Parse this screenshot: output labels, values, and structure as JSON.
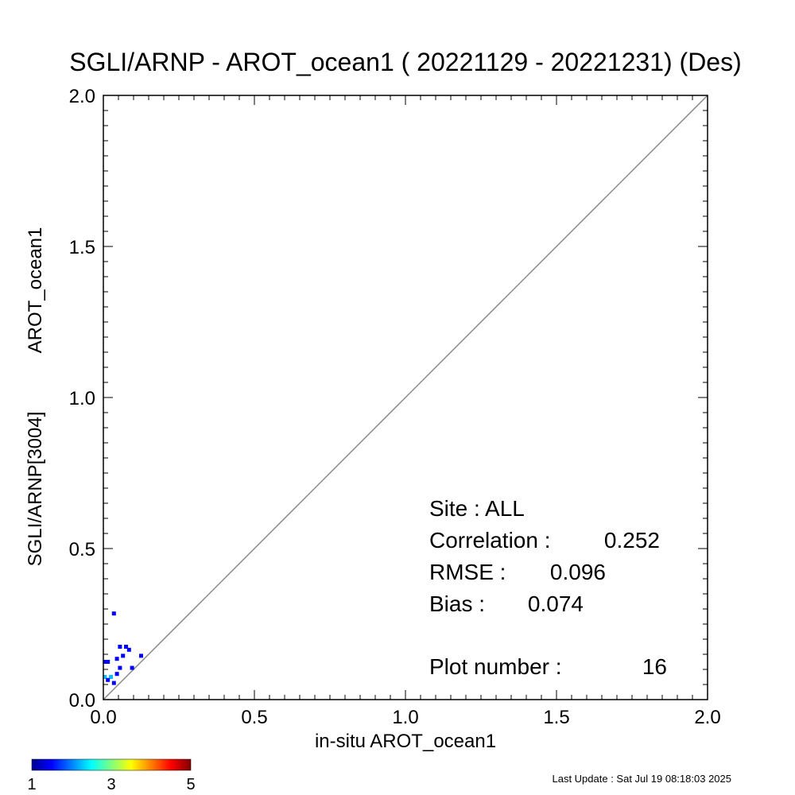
{
  "chart_data": {
    "type": "scatter",
    "title": "SGLI/ARNP - AROT_ocean1 ( 20221129 - 20221231) (Des)",
    "xlabel": "in-situ AROT_ocean1",
    "ylabel_main": "SGLI/ARNP[3004]",
    "ylabel_sub": "AROT_ocean1",
    "xlim": [
      0.0,
      2.0
    ],
    "ylim": [
      0.0,
      2.0
    ],
    "x_ticks": [
      "0.0",
      "0.5",
      "1.0",
      "1.5",
      "2.0"
    ],
    "y_ticks": [
      "0.0",
      "0.5",
      "1.0",
      "1.5",
      "2.0"
    ],
    "one_to_one_line": true,
    "points": [
      {
        "x": 0.035,
        "y": 0.285,
        "count": 1
      },
      {
        "x": 0.055,
        "y": 0.175,
        "count": 1
      },
      {
        "x": 0.075,
        "y": 0.175,
        "count": 1
      },
      {
        "x": 0.085,
        "y": 0.165,
        "count": 1
      },
      {
        "x": 0.065,
        "y": 0.145,
        "count": 1
      },
      {
        "x": 0.125,
        "y": 0.145,
        "count": 1
      },
      {
        "x": 0.045,
        "y": 0.135,
        "count": 1
      },
      {
        "x": 0.015,
        "y": 0.125,
        "count": 1
      },
      {
        "x": 0.055,
        "y": 0.105,
        "count": 1
      },
      {
        "x": 0.095,
        "y": 0.105,
        "count": 1
      },
      {
        "x": 0.045,
        "y": 0.085,
        "count": 1
      },
      {
        "x": 0.035,
        "y": 0.055,
        "count": 1
      },
      {
        "x": 0.005,
        "y": 0.075,
        "count": 2
      },
      {
        "x": 0.025,
        "y": 0.075,
        "count": 2
      },
      {
        "x": 0.005,
        "y": 0.125,
        "count": 1
      },
      {
        "x": 0.015,
        "y": 0.065,
        "count": 1
      }
    ],
    "stats": {
      "site_label": "Site : ALL",
      "correlation_label": "Correlation :",
      "correlation_value": "0.252",
      "rmse_label": "RMSE :",
      "rmse_value": "0.096",
      "bias_label": "Bias :",
      "bias_value": "0.074",
      "plot_number_label": "Plot number :",
      "plot_number_value": "16"
    },
    "colorbar": {
      "min": 1,
      "max": 5,
      "tick_labels": [
        "1",
        "3",
        "5"
      ],
      "colormap": "jet"
    }
  },
  "footer": {
    "last_update": "Last Update : Sat Jul 19 08:18:03 2025"
  },
  "colors": {
    "axis": "#000000",
    "one_to_one_line": "#888888"
  }
}
